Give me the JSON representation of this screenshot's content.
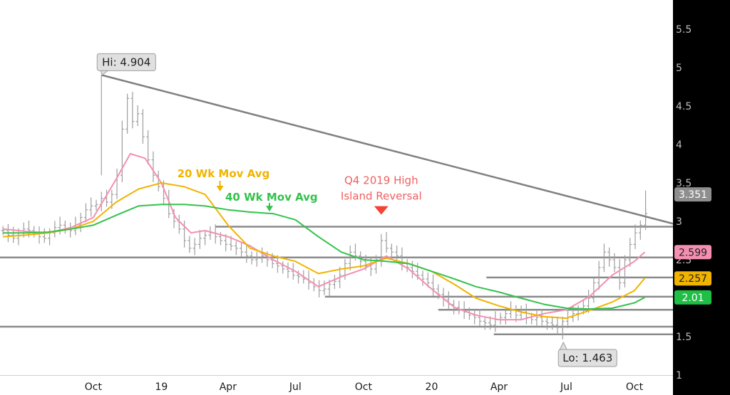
{
  "chart_data": {
    "type": "line",
    "title": "",
    "xlabel": "",
    "ylabel": "",
    "ylim": [
      1,
      6
    ],
    "grid": false,
    "legend": "none",
    "y_ticks": [
      1.5,
      2,
      2.5,
      3,
      3.5,
      4,
      4.5,
      5,
      5.5
    ],
    "y_tick_labels": [
      "1.5",
      "2",
      "2.5",
      "3",
      "3.5",
      "4",
      "4.5",
      "5",
      "5.5"
    ],
    "y_axis_bottom_label": "1",
    "x_tick_labels": [
      {
        "label": "Oct",
        "date": "2018-10-01"
      },
      {
        "label": "19",
        "date": "2019-01-01"
      },
      {
        "label": "Apr",
        "date": "2019-04-01"
      },
      {
        "label": "Jul",
        "date": "2019-07-01"
      },
      {
        "label": "Oct",
        "date": "2019-10-01"
      },
      {
        "label": "20",
        "date": "2020-01-01"
      },
      {
        "label": "Apr",
        "date": "2020-04-01"
      },
      {
        "label": "Jul",
        "date": "2020-07-01"
      },
      {
        "label": "Oct",
        "date": "2020-10-01"
      }
    ],
    "xlim": [
      "2018-05-28",
      "2020-11-22"
    ],
    "colors": {
      "price": "#9e9e9e",
      "ma10": "#f48fb1",
      "ma20": "#f0b400",
      "ma40": "#33c24d",
      "trend": "#808080",
      "levels": "#8a8a8a",
      "axis_bg": "#000000",
      "marker": "#f44336"
    },
    "series": [
      {
        "key": "ma10",
        "x": [
          "2018-06-01",
          "2018-07-01",
          "2018-08-01",
          "2018-09-01",
          "2018-10-01",
          "2018-11-01",
          "2018-11-20",
          "2018-12-10",
          "2019-01-01",
          "2019-01-20",
          "2019-02-10",
          "2019-03-01",
          "2019-04-01",
          "2019-05-01",
          "2019-06-01",
          "2019-07-01",
          "2019-08-01",
          "2019-09-01",
          "2019-10-01",
          "2019-11-01",
          "2019-12-01",
          "2020-01-01",
          "2020-02-01",
          "2020-03-01",
          "2020-04-01",
          "2020-05-01",
          "2020-06-01",
          "2020-07-01",
          "2020-08-01",
          "2020-09-01",
          "2020-10-01",
          "2020-10-15"
        ],
        "values": [
          2.9,
          2.87,
          2.85,
          2.92,
          3.05,
          3.55,
          3.88,
          3.82,
          3.5,
          3.05,
          2.85,
          2.88,
          2.8,
          2.68,
          2.5,
          2.35,
          2.15,
          2.28,
          2.38,
          2.55,
          2.38,
          2.12,
          1.88,
          1.78,
          1.72,
          1.72,
          1.8,
          1.85,
          2.02,
          2.3,
          2.48,
          2.6
        ]
      },
      {
        "key": "ma20",
        "x": [
          "2018-06-01",
          "2018-07-01",
          "2018-08-01",
          "2018-09-01",
          "2018-10-01",
          "2018-11-01",
          "2018-12-01",
          "2019-01-01",
          "2019-02-01",
          "2019-03-01",
          "2019-04-01",
          "2019-05-01",
          "2019-06-01",
          "2019-07-01",
          "2019-08-01",
          "2019-09-01",
          "2019-10-01",
          "2019-11-01",
          "2019-12-01",
          "2020-01-01",
          "2020-02-01",
          "2020-03-01",
          "2020-04-01",
          "2020-05-01",
          "2020-06-01",
          "2020-07-01",
          "2020-08-01",
          "2020-09-01",
          "2020-10-01",
          "2020-10-15"
        ],
        "values": [
          2.8,
          2.82,
          2.85,
          2.9,
          3.0,
          3.25,
          3.42,
          3.5,
          3.45,
          3.35,
          2.95,
          2.65,
          2.55,
          2.48,
          2.32,
          2.38,
          2.42,
          2.52,
          2.45,
          2.35,
          2.18,
          2.0,
          1.9,
          1.82,
          1.76,
          1.74,
          1.84,
          1.95,
          2.1,
          2.26
        ]
      },
      {
        "key": "ma40",
        "x": [
          "2018-06-01",
          "2018-07-01",
          "2018-08-01",
          "2018-09-01",
          "2018-10-01",
          "2018-11-01",
          "2018-12-01",
          "2019-01-01",
          "2019-02-01",
          "2019-03-01",
          "2019-04-01",
          "2019-05-01",
          "2019-06-01",
          "2019-07-01",
          "2019-08-01",
          "2019-09-01",
          "2019-10-01",
          "2019-11-01",
          "2019-12-01",
          "2020-01-01",
          "2020-02-01",
          "2020-03-01",
          "2020-04-01",
          "2020-05-01",
          "2020-06-01",
          "2020-07-01",
          "2020-08-01",
          "2020-09-01",
          "2020-10-01",
          "2020-10-15"
        ],
        "values": [
          2.85,
          2.85,
          2.86,
          2.9,
          2.95,
          3.08,
          3.2,
          3.22,
          3.22,
          3.2,
          3.15,
          3.12,
          3.1,
          3.02,
          2.8,
          2.6,
          2.5,
          2.48,
          2.45,
          2.35,
          2.25,
          2.15,
          2.08,
          2.0,
          1.92,
          1.87,
          1.86,
          1.87,
          1.94,
          2.01
        ]
      }
    ],
    "price_bars": {
      "x": [
        "2018-06-01",
        "2018-06-08",
        "2018-06-15",
        "2018-06-22",
        "2018-06-29",
        "2018-07-06",
        "2018-07-13",
        "2018-07-20",
        "2018-07-27",
        "2018-08-03",
        "2018-08-10",
        "2018-08-17",
        "2018-08-24",
        "2018-08-31",
        "2018-09-07",
        "2018-09-14",
        "2018-09-21",
        "2018-09-28",
        "2018-10-05",
        "2018-10-12",
        "2018-10-19",
        "2018-10-26",
        "2018-11-02",
        "2018-11-09",
        "2018-11-16",
        "2018-11-23",
        "2018-11-30",
        "2018-12-07",
        "2018-12-14",
        "2018-12-21",
        "2018-12-28",
        "2019-01-04",
        "2019-01-11",
        "2019-01-18",
        "2019-01-25",
        "2019-02-01",
        "2019-02-08",
        "2019-02-15",
        "2019-02-22",
        "2019-03-01",
        "2019-03-08",
        "2019-03-15",
        "2019-03-22",
        "2019-03-29",
        "2019-04-05",
        "2019-04-12",
        "2019-04-19",
        "2019-04-26",
        "2019-05-03",
        "2019-05-10",
        "2019-05-17",
        "2019-05-24",
        "2019-05-31",
        "2019-06-07",
        "2019-06-14",
        "2019-06-21",
        "2019-06-28",
        "2019-07-05",
        "2019-07-12",
        "2019-07-19",
        "2019-07-26",
        "2019-08-02",
        "2019-08-09",
        "2019-08-16",
        "2019-08-23",
        "2019-08-30",
        "2019-09-06",
        "2019-09-13",
        "2019-09-20",
        "2019-09-27",
        "2019-10-04",
        "2019-10-11",
        "2019-10-18",
        "2019-10-25",
        "2019-11-01",
        "2019-11-08",
        "2019-11-15",
        "2019-11-22",
        "2019-11-29",
        "2019-12-06",
        "2019-12-13",
        "2019-12-20",
        "2019-12-27",
        "2020-01-03",
        "2020-01-10",
        "2020-01-17",
        "2020-01-24",
        "2020-01-31",
        "2020-02-07",
        "2020-02-14",
        "2020-02-21",
        "2020-02-28",
        "2020-03-06",
        "2020-03-13",
        "2020-03-20",
        "2020-03-27",
        "2020-04-03",
        "2020-04-10",
        "2020-04-17",
        "2020-04-24",
        "2020-05-01",
        "2020-05-08",
        "2020-05-15",
        "2020-05-22",
        "2020-05-29",
        "2020-06-05",
        "2020-06-12",
        "2020-06-19",
        "2020-06-26",
        "2020-07-03",
        "2020-07-10",
        "2020-07-17",
        "2020-07-24",
        "2020-07-31",
        "2020-08-07",
        "2020-08-14",
        "2020-08-21",
        "2020-08-28",
        "2020-09-04",
        "2020-09-11",
        "2020-09-18",
        "2020-09-25",
        "2020-10-02",
        "2020-10-09",
        "2020-10-16"
      ],
      "close": [
        2.88,
        2.82,
        2.78,
        2.85,
        2.9,
        2.88,
        2.85,
        2.8,
        2.78,
        2.85,
        2.92,
        2.95,
        2.9,
        2.88,
        2.95,
        3.05,
        3.15,
        3.2,
        3.22,
        3.3,
        3.25,
        3.35,
        3.6,
        4.2,
        4.6,
        4.3,
        4.4,
        4.1,
        3.8,
        3.6,
        3.45,
        3.3,
        3.1,
        3.0,
        2.9,
        2.75,
        2.65,
        2.7,
        2.78,
        2.82,
        2.85,
        2.8,
        2.75,
        2.7,
        2.68,
        2.65,
        2.6,
        2.55,
        2.5,
        2.52,
        2.55,
        2.5,
        2.45,
        2.42,
        2.38,
        2.35,
        2.3,
        2.28,
        2.25,
        2.2,
        2.15,
        2.1,
        2.12,
        2.18,
        2.22,
        2.3,
        2.45,
        2.6,
        2.55,
        2.48,
        2.42,
        2.38,
        2.5,
        2.75,
        2.65,
        2.6,
        2.55,
        2.45,
        2.4,
        2.35,
        2.3,
        2.25,
        2.2,
        2.12,
        2.05,
        1.98,
        1.92,
        1.88,
        1.85,
        1.82,
        1.78,
        1.75,
        1.7,
        1.68,
        1.65,
        1.72,
        1.75,
        1.8,
        1.85,
        1.78,
        1.82,
        1.75,
        1.72,
        1.75,
        1.7,
        1.68,
        1.65,
        1.62,
        1.7,
        1.75,
        1.8,
        1.85,
        1.9,
        2.0,
        2.2,
        2.4,
        2.6,
        2.5,
        2.4,
        2.2,
        2.5,
        2.7,
        2.85,
        2.95,
        3.1
      ]
    },
    "levels": [
      {
        "y": 2.93,
        "from": "2019-03-15",
        "to": "2020-11-22"
      },
      {
        "y": 2.53,
        "from": "2018-05-28",
        "to": "2020-11-22"
      },
      {
        "y": 2.27,
        "from": "2020-03-15",
        "to": "2020-11-22"
      },
      {
        "y": 2.02,
        "from": "2019-08-10",
        "to": "2020-11-22"
      },
      {
        "y": 1.85,
        "from": "2020-01-10",
        "to": "2020-11-22"
      },
      {
        "y": 1.63,
        "from": "2018-05-28",
        "to": "2020-11-22"
      },
      {
        "y": 1.53,
        "from": "2020-03-25",
        "to": "2020-11-22"
      }
    ],
    "trendline": {
      "x1": "2018-10-12",
      "y1": 4.904,
      "x2": "2020-11-22",
      "y2": 2.97
    },
    "annotations": {
      "hi": {
        "text": "Hi: 4.904",
        "date": "2018-10-12",
        "value": 4.904
      },
      "lo": {
        "text": "Lo: 1.463",
        "date": "2020-06-26",
        "value": 1.463
      },
      "wk20": {
        "text": "20 Wk Mov Avg",
        "date": "2019-02-01",
        "value": 3.5
      },
      "wk40": {
        "text": "40 Wk Mov Avg",
        "date": "2019-05-01",
        "value": 3.22
      },
      "q4_line1": "Q4 2019 High",
      "q4_line2": "Island Reversal",
      "q4_date": "2019-10-25",
      "q4_value": 3.05
    },
    "price_badges": [
      {
        "text": "3.351",
        "value": 3.351,
        "bg": "#8e8e8e",
        "fg": "#ffffff"
      },
      {
        "text": "2.599",
        "value": 2.599,
        "bg": "#f48fb1",
        "fg": "#222222"
      },
      {
        "text": "2.257",
        "value": 2.257,
        "bg": "#f0b400",
        "fg": "#222222"
      },
      {
        "text": "2.01",
        "value": 2.01,
        "bg": "#1fbf45",
        "fg": "#ffffff"
      }
    ]
  }
}
